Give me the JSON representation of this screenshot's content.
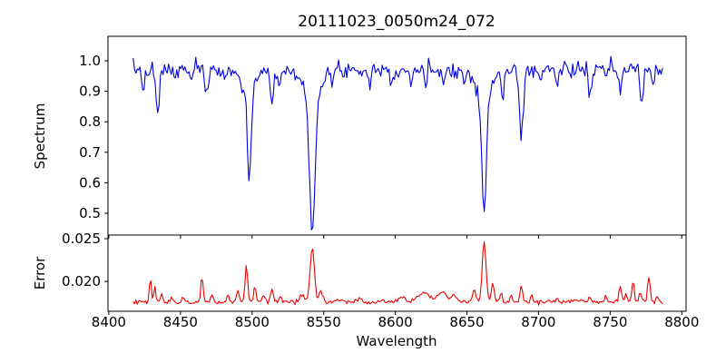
{
  "chart_data": {
    "type": "line",
    "title": "20111023_0050m24_072",
    "xlabel": "Wavelength",
    "xlim": [
      8399.4,
      8803.0
    ],
    "xticks": [
      8400,
      8450,
      8500,
      8550,
      8600,
      8650,
      8700,
      8750,
      8800
    ],
    "x_range": [
      8417,
      8787
    ],
    "sample_step": 0.95,
    "noise_seed": 7,
    "background": "#ffffff",
    "frame_color": "#000000",
    "grid": false,
    "legend": "none",
    "panels": [
      {
        "id": "spectrum",
        "ylabel": "Spectrum",
        "color": "#0000e0",
        "line_width": 1.1,
        "ylim": [
          0.4286,
          1.0803
        ],
        "yticks": [
          0.5,
          0.6,
          0.7,
          0.8,
          0.9,
          1.0
        ],
        "ytick_labels": [
          "0.5",
          "0.6",
          "0.7",
          "0.8",
          "0.9",
          "1.0"
        ],
        "continuum": 0.972,
        "noise_sigma": 0.013,
        "feature_type": "absorption",
        "features_note": "each feature = [center_wavelength, depth, gaussian_sigma]; Ca II triplet at 8498/8542/8662 modeled with core+wing components",
        "features": [
          [
            8424,
            0.055,
            1.0
          ],
          [
            8427,
            0.04,
            0.8
          ],
          [
            8434,
            0.15,
            1.2
          ],
          [
            8446,
            0.04,
            0.9
          ],
          [
            8457,
            0.035,
            0.9
          ],
          [
            8468,
            0.095,
            1.1
          ],
          [
            8482,
            0.05,
            0.9
          ],
          [
            8493,
            0.04,
            0.9
          ],
          [
            8498,
            0.3,
            1.2
          ],
          [
            8498,
            0.08,
            4.0
          ],
          [
            8514,
            0.115,
            1.2
          ],
          [
            8519,
            0.05,
            0.9
          ],
          [
            8542,
            0.42,
            1.8
          ],
          [
            8542,
            0.105,
            6.0
          ],
          [
            8556,
            0.04,
            0.9
          ],
          [
            8582,
            0.045,
            0.9
          ],
          [
            8598,
            0.045,
            0.9
          ],
          [
            8611,
            0.05,
            0.9
          ],
          [
            8621,
            0.06,
            1.0
          ],
          [
            8634,
            0.04,
            0.9
          ],
          [
            8648,
            0.05,
            0.9
          ],
          [
            8662,
            0.38,
            1.5
          ],
          [
            8662,
            0.1,
            5.0
          ],
          [
            8675,
            0.095,
            1.0
          ],
          [
            8688,
            0.225,
            1.4
          ],
          [
            8702,
            0.04,
            0.9
          ],
          [
            8713,
            0.055,
            0.9
          ],
          [
            8736,
            0.09,
            1.1
          ],
          [
            8747,
            0.04,
            0.9
          ],
          [
            8757,
            0.07,
            1.0
          ],
          [
            8772,
            0.105,
            1.2
          ],
          [
            8780,
            0.05,
            0.9
          ]
        ]
      },
      {
        "id": "error",
        "ylabel": "Error",
        "color": "#ee0000",
        "line_width": 1.1,
        "ylim": [
          0.0165,
          0.02543
        ],
        "yticks": [
          0.02,
          0.025
        ],
        "ytick_labels": [
          "0.020",
          "0.025"
        ],
        "continuum": 0.0176,
        "noise_sigma": 0.00012,
        "feature_type": "emission",
        "features_note": "each feature = [center_wavelength, peak_height_above_baseline, gaussian_sigma]",
        "features": [
          [
            8429,
            0.0028,
            0.7
          ],
          [
            8432,
            0.0018,
            0.6
          ],
          [
            8437,
            0.0011,
            0.7
          ],
          [
            8444,
            0.0005,
            0.8
          ],
          [
            8452,
            0.0006,
            0.8
          ],
          [
            8465,
            0.0029,
            0.8
          ],
          [
            8472,
            0.0008,
            0.7
          ],
          [
            8483,
            0.0007,
            0.8
          ],
          [
            8490,
            0.0013,
            0.9
          ],
          [
            8496,
            0.0043,
            0.9
          ],
          [
            8502,
            0.0019,
            0.8
          ],
          [
            8508,
            0.0008,
            0.8
          ],
          [
            8514,
            0.0015,
            0.9
          ],
          [
            8520,
            0.0007,
            0.8
          ],
          [
            8535,
            0.0008,
            1.5
          ],
          [
            8542,
            0.0063,
            1.5
          ],
          [
            8548,
            0.0012,
            1.2
          ],
          [
            8560,
            0.0003,
            1.5
          ],
          [
            8575,
            0.0004,
            1.2
          ],
          [
            8590,
            0.0003,
            1.2
          ],
          [
            8605,
            0.0006,
            2.0
          ],
          [
            8620,
            0.0011,
            4.0
          ],
          [
            8633,
            0.0012,
            3.0
          ],
          [
            8641,
            0.0008,
            2.0
          ],
          [
            8655,
            0.0013,
            1.2
          ],
          [
            8662,
            0.0072,
            1.3
          ],
          [
            8668,
            0.0024,
            0.9
          ],
          [
            8674,
            0.0011,
            0.8
          ],
          [
            8681,
            0.0009,
            0.8
          ],
          [
            8688,
            0.0019,
            0.9
          ],
          [
            8695,
            0.0007,
            0.8
          ],
          [
            8713,
            0.0005,
            0.9
          ],
          [
            8725,
            0.0004,
            1.0
          ],
          [
            8736,
            0.0007,
            0.9
          ],
          [
            8747,
            0.0007,
            0.9
          ],
          [
            8757,
            0.0018,
            0.9
          ],
          [
            8761,
            0.001,
            0.7
          ],
          [
            8766,
            0.0025,
            0.8
          ],
          [
            8771,
            0.0012,
            0.8
          ],
          [
            8777,
            0.003,
            0.9
          ],
          [
            8783,
            0.0008,
            0.7
          ]
        ]
      }
    ]
  }
}
